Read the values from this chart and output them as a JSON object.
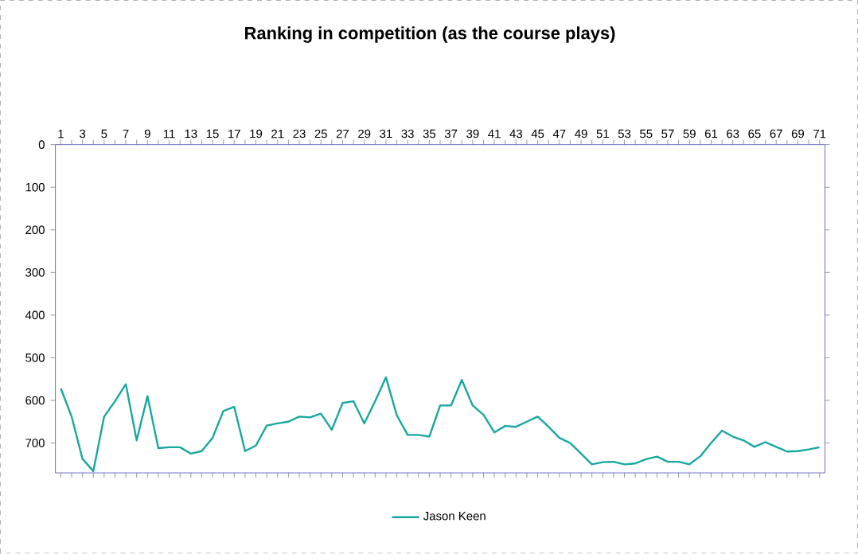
{
  "chart_data": {
    "type": "line",
    "title": "Ranking in competition (as the course plays)",
    "categories": [
      "1",
      null,
      "3",
      null,
      "5",
      null,
      "7",
      null,
      "9",
      null,
      "11",
      null,
      "13",
      null,
      "15",
      null,
      "17",
      null,
      "19",
      null,
      "21",
      null,
      "23",
      null,
      "25",
      null,
      "27",
      null,
      "29",
      null,
      "31",
      null,
      "33",
      null,
      "35",
      null,
      "37",
      null,
      "39",
      null,
      "41",
      null,
      "43",
      null,
      "45",
      null,
      "47",
      null,
      "49",
      null,
      "51",
      null,
      "53",
      null,
      "55",
      null,
      "57",
      null,
      "59",
      null,
      "61",
      null,
      "63",
      null,
      "65",
      null,
      "67",
      null,
      "69",
      null,
      "71"
    ],
    "series": [
      {
        "name": "Jason Keen",
        "color": "#17a8a0",
        "values": [
          572,
          638,
          737,
          766,
          638,
          602,
          562,
          694,
          590,
          712,
          710,
          710,
          725,
          719,
          688,
          625,
          615,
          719,
          706,
          659,
          654,
          650,
          638,
          640,
          631,
          669,
          606,
          602,
          654,
          602,
          546,
          635,
          681,
          681,
          685,
          612,
          612,
          552,
          612,
          634,
          675,
          660,
          662,
          650,
          638,
          662,
          688,
          700,
          725,
          750,
          745,
          744,
          750,
          748,
          738,
          732,
          744,
          744,
          750,
          731,
          700,
          671,
          685,
          694,
          709,
          698,
          709,
          720,
          719,
          715,
          710
        ]
      }
    ],
    "ylim": [
      770,
      0
    ],
    "yticks": [
      0,
      100,
      200,
      300,
      400,
      500,
      600,
      700
    ],
    "legend": "bottom",
    "marker": "none",
    "grid": false
  }
}
